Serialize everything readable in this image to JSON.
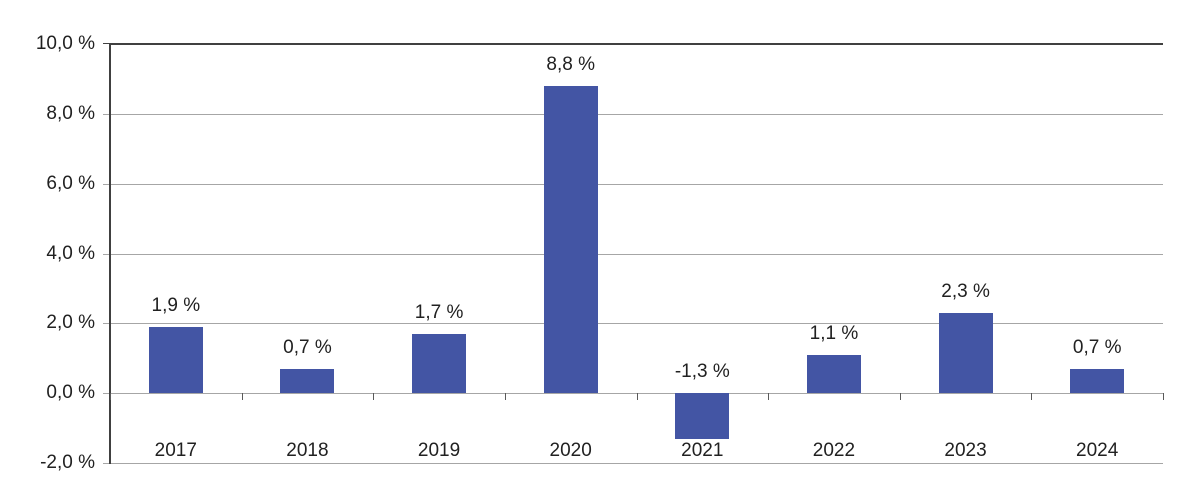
{
  "chart_data": {
    "type": "bar",
    "title": "",
    "xlabel": "",
    "ylabel": "",
    "categories": [
      "2017",
      "2018",
      "2019",
      "2020",
      "2021",
      "2022",
      "2023",
      "2024"
    ],
    "values": [
      1.9,
      0.7,
      1.7,
      8.8,
      -1.3,
      1.1,
      2.3,
      0.7
    ],
    "value_labels": [
      "1,9 %",
      "0,7 %",
      "1,7 %",
      "8,8 %",
      "-1,3 %",
      "1,1 %",
      "2,3 %",
      "0,7 %"
    ],
    "ylim": [
      -2,
      10
    ],
    "ytick_step": 2,
    "ytick_values": [
      10,
      8,
      6,
      4,
      2,
      0,
      -2
    ],
    "ytick_labels": [
      "10,0 %",
      "8,0 %",
      "6,0 %",
      "4,0 %",
      "2,0 %",
      "0,0 %",
      "-2,0 %"
    ],
    "grid": true,
    "legend_position": "none",
    "decimal_separator": ",",
    "colors": {
      "bar_fill": "#4355A4",
      "gridline": "#A6A6A6",
      "axis_line": "#404040",
      "tick_mark": "#595959",
      "label_text": "#212121",
      "background": "#FFFFFF"
    }
  }
}
